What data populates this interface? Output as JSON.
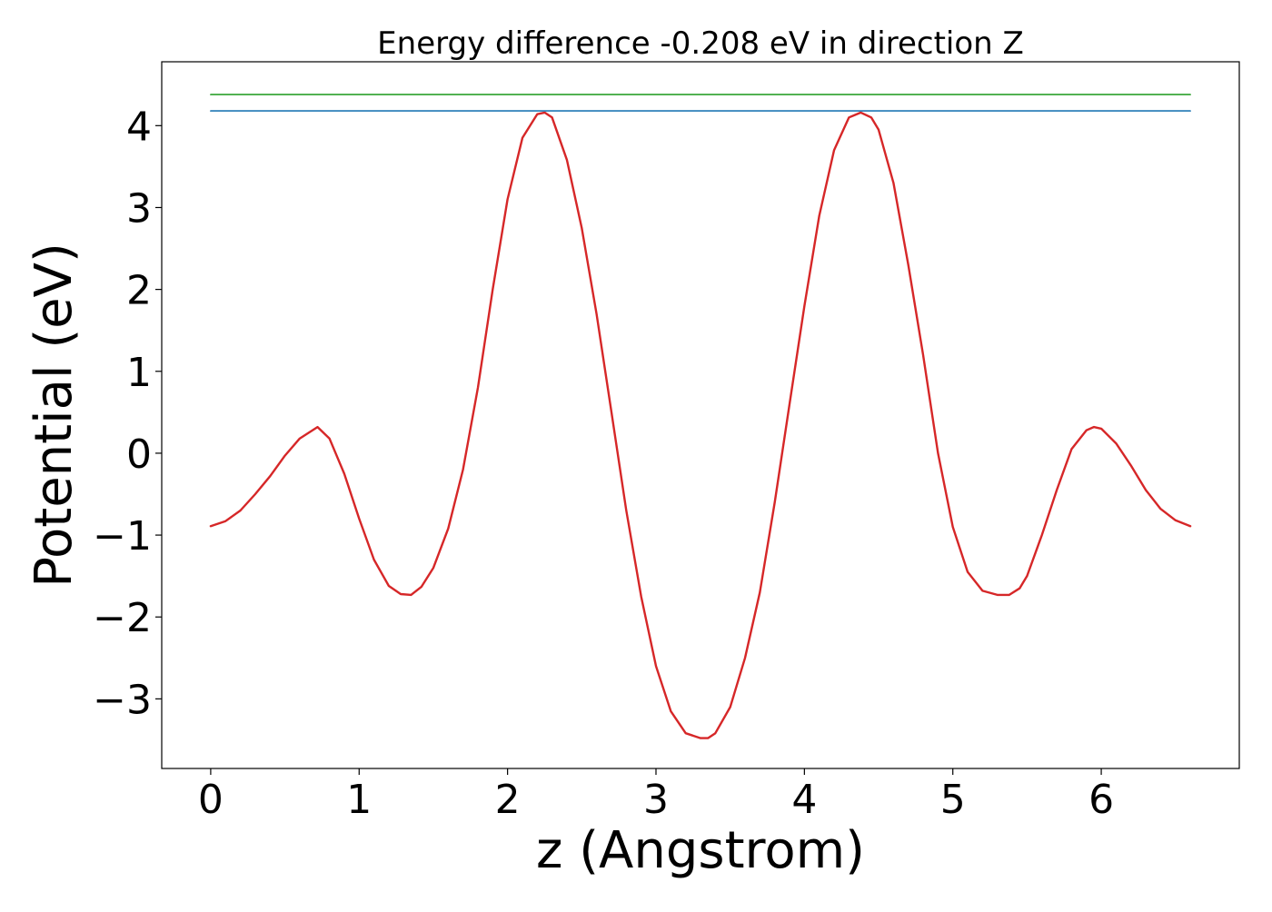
{
  "chart_data": {
    "type": "line",
    "title": "Energy difference -0.208 eV in direction Z",
    "xlabel": "z (Angstrom)",
    "ylabel": "Potential (eV)",
    "xlim": [
      -0.33,
      6.93
    ],
    "ylim": [
      -3.85,
      4.78
    ],
    "xticks": [
      0,
      1,
      2,
      3,
      4,
      5,
      6
    ],
    "yticks": [
      -3,
      -2,
      -1,
      0,
      1,
      2,
      3,
      4
    ],
    "ytick_labels": [
      "−3",
      "−2",
      "−1",
      "0",
      "1",
      "2",
      "3",
      "4"
    ],
    "grid": false,
    "series": [
      {
        "role": "potential",
        "color": "#d62728",
        "x": [
          0.0,
          0.1,
          0.2,
          0.3,
          0.4,
          0.5,
          0.6,
          0.72,
          0.8,
          0.9,
          1.0,
          1.1,
          1.2,
          1.28,
          1.35,
          1.42,
          1.5,
          1.6,
          1.7,
          1.8,
          1.9,
          2.0,
          2.1,
          2.2,
          2.25,
          2.3,
          2.4,
          2.5,
          2.6,
          2.7,
          2.8,
          2.9,
          3.0,
          3.1,
          3.2,
          3.3,
          3.35,
          3.4,
          3.5,
          3.6,
          3.7,
          3.8,
          3.9,
          4.0,
          4.1,
          4.2,
          4.3,
          4.38,
          4.45,
          4.5,
          4.6,
          4.7,
          4.8,
          4.9,
          5.0,
          5.1,
          5.2,
          5.3,
          5.38,
          5.45,
          5.5,
          5.6,
          5.7,
          5.8,
          5.9,
          5.95,
          6.0,
          6.1,
          6.2,
          6.3,
          6.4,
          6.5,
          6.6
        ],
        "y": [
          -0.89,
          -0.83,
          -0.7,
          -0.5,
          -0.28,
          -0.03,
          0.18,
          0.32,
          0.18,
          -0.25,
          -0.8,
          -1.3,
          -1.62,
          -1.72,
          -1.73,
          -1.63,
          -1.4,
          -0.92,
          -0.2,
          0.8,
          2.0,
          3.1,
          3.85,
          4.14,
          4.16,
          4.1,
          3.58,
          2.75,
          1.7,
          0.5,
          -0.7,
          -1.75,
          -2.6,
          -3.15,
          -3.42,
          -3.48,
          -3.48,
          -3.42,
          -3.1,
          -2.5,
          -1.7,
          -0.6,
          0.6,
          1.8,
          2.9,
          3.7,
          4.1,
          4.16,
          4.1,
          3.95,
          3.3,
          2.3,
          1.2,
          0.0,
          -0.9,
          -1.45,
          -1.68,
          -1.73,
          -1.73,
          -1.65,
          -1.5,
          -1.0,
          -0.45,
          0.05,
          0.28,
          0.32,
          0.3,
          0.12,
          -0.15,
          -0.45,
          -0.68,
          -0.82,
          -0.89
        ]
      },
      {
        "role": "level-1",
        "color": "#1f77b4",
        "x": [
          0.0,
          6.6
        ],
        "y": [
          4.18,
          4.18
        ]
      },
      {
        "role": "level-2",
        "color": "#2ca02c",
        "x": [
          0.0,
          6.6
        ],
        "y": [
          4.38,
          4.38
        ]
      }
    ]
  }
}
